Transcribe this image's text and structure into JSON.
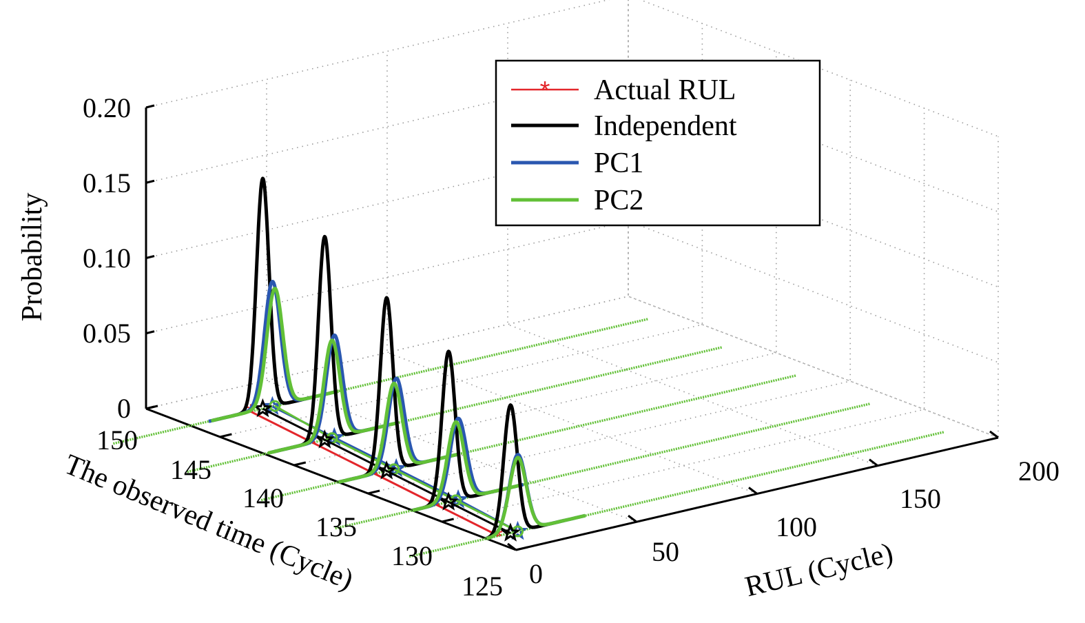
{
  "chart_data": {
    "type": "line",
    "view": "3d-waterfall",
    "xlabel": "RUL (Cycle)",
    "ylabel": "The observed time (Cycle)",
    "zlabel": "Probability",
    "xlim": [
      0,
      200
    ],
    "ylim": [
      125,
      150
    ],
    "zlim": [
      0,
      0.2
    ],
    "x_ticks": [
      "0",
      "50",
      "100",
      "150",
      "200"
    ],
    "y_ticks": [
      "125",
      "130",
      "135",
      "140",
      "145",
      "150"
    ],
    "z_ticks": [
      "0",
      "0.05",
      "0.10",
      "0.15",
      "0.20"
    ],
    "grid": true,
    "legend_position": "top-right",
    "observed_times": [
      147,
      142,
      137,
      132,
      127
    ],
    "colors": {
      "actual": "#e3262b",
      "independent": "#000000",
      "pc1": "#2a57b0",
      "pc2": "#62c037"
    },
    "series": [
      {
        "name": "Actual RUL",
        "points": [
          {
            "t": 147,
            "rul": 25
          },
          {
            "t": 142,
            "rul": 20
          },
          {
            "t": 137,
            "rul": 15
          },
          {
            "t": 132,
            "rul": 10
          },
          {
            "t": 127,
            "rul": 5
          }
        ]
      },
      {
        "name": "Independent",
        "curves": [
          {
            "t": 147,
            "mean": 30,
            "sd": 2.6,
            "peak": 0.153
          },
          {
            "t": 142,
            "mean": 25,
            "sd": 2.6,
            "peak": 0.135
          },
          {
            "t": 137,
            "mean": 20,
            "sd": 2.6,
            "peak": 0.115
          },
          {
            "t": 132,
            "mean": 15,
            "sd": 2.7,
            "peak": 0.1
          },
          {
            "t": 127,
            "mean": 10,
            "sd": 2.8,
            "peak": 0.085
          }
        ]
      },
      {
        "name": "PC1",
        "curves": [
          {
            "t": 147,
            "mean": 34,
            "sd": 3.3,
            "peak": 0.083
          },
          {
            "t": 142,
            "mean": 29,
            "sd": 3.3,
            "peak": 0.068
          },
          {
            "t": 137,
            "mean": 24,
            "sd": 3.3,
            "peak": 0.06
          },
          {
            "t": 132,
            "mean": 19,
            "sd": 3.4,
            "peak": 0.054
          },
          {
            "t": 127,
            "mean": 13,
            "sd": 3.5,
            "peak": 0.051
          }
        ]
      },
      {
        "name": "PC2",
        "curves": [
          {
            "t": 147,
            "mean": 35,
            "sd": 3.3,
            "peak": 0.078
          },
          {
            "t": 142,
            "mean": 28,
            "sd": 3.3,
            "peak": 0.065
          },
          {
            "t": 137,
            "mean": 23,
            "sd": 3.3,
            "peak": 0.057
          },
          {
            "t": 132,
            "mean": 18,
            "sd": 3.4,
            "peak": 0.052
          },
          {
            "t": 127,
            "mean": 13,
            "sd": 3.5,
            "peak": 0.049
          }
        ]
      }
    ]
  }
}
